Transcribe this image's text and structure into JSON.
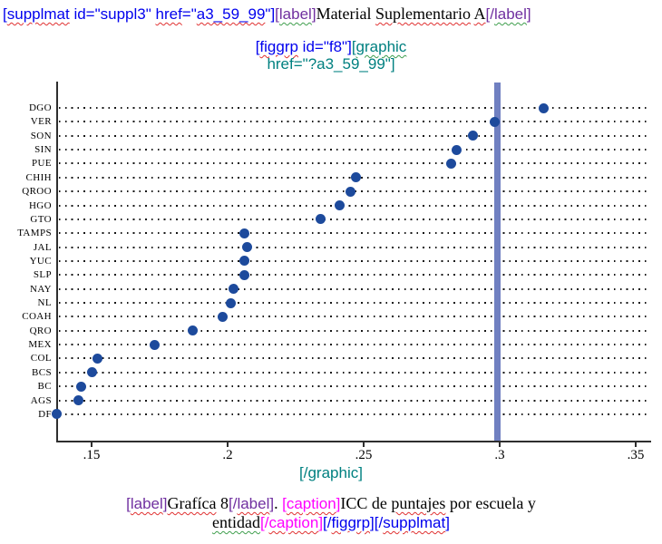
{
  "colors": {
    "blue": "#0000ee",
    "teal": "#008080",
    "purple": "#7030a0",
    "magenta": "#ff00ff",
    "black": "#000000",
    "squiggle_red": "#e03131",
    "squiggle_green": "#3f9e4d",
    "dot_navy": "#1d4a9c",
    "ref_line_blue": "#7080c1",
    "axis_gray": "#2e2e2e"
  },
  "header": {
    "segments": [
      {
        "t": "[",
        "c": "blue"
      },
      {
        "t": "supplmat",
        "c": "blue",
        "u": "red"
      },
      {
        "t": " id=\"suppl3\" ",
        "c": "blue"
      },
      {
        "t": "href",
        "c": "blue",
        "u": "red"
      },
      {
        "t": "=\"",
        "c": "blue"
      },
      {
        "t": "a3_59_99",
        "c": "blue",
        "u": "red"
      },
      {
        "t": "\"]",
        "c": "blue"
      },
      {
        "t": "[",
        "c": "purple"
      },
      {
        "t": "label",
        "c": "purple",
        "u": "green"
      },
      {
        "t": "]",
        "c": "purple"
      },
      {
        "t": "Material ",
        "c": "black",
        "k": "text"
      },
      {
        "t": "Suplementario",
        "c": "black",
        "k": "text",
        "u": "red"
      },
      {
        "t": " ",
        "c": "black",
        "k": "text"
      },
      {
        "t": "A",
        "c": "black",
        "k": "text",
        "u": "red"
      },
      {
        "t": "[/",
        "c": "purple"
      },
      {
        "t": "label",
        "c": "purple",
        "u": "green"
      },
      {
        "t": "]",
        "c": "purple"
      }
    ]
  },
  "figgrp": {
    "line1": [
      {
        "t": "[",
        "c": "blue"
      },
      {
        "t": "figgrp",
        "c": "blue",
        "u": "red"
      },
      {
        "t": " id=\"f8\"]",
        "c": "blue"
      },
      {
        "t": "[",
        "c": "teal"
      },
      {
        "t": "graphic",
        "c": "teal",
        "u": "green"
      }
    ],
    "line2": [
      {
        "t": "href=\"?a3_59_99\"]",
        "c": "teal"
      }
    ]
  },
  "graphic_close": {
    "segments": [
      {
        "t": "[/graphic]",
        "c": "teal"
      }
    ]
  },
  "caption": {
    "line1": [
      {
        "t": "[",
        "c": "purple"
      },
      {
        "t": "label",
        "c": "purple",
        "u": "red"
      },
      {
        "t": "]",
        "c": "purple"
      },
      {
        "t": "Grafíca",
        "c": "black",
        "k": "text",
        "u": "red"
      },
      {
        "t": " 8",
        "c": "black",
        "k": "text"
      },
      {
        "t": "[/",
        "c": "purple"
      },
      {
        "t": "label",
        "c": "purple",
        "u": "red"
      },
      {
        "t": "]",
        "c": "purple"
      },
      {
        "t": ". ",
        "c": "black",
        "k": "text"
      },
      {
        "t": "[",
        "c": "magenta"
      },
      {
        "t": "caption",
        "c": "magenta",
        "u": "red"
      },
      {
        "t": "]",
        "c": "magenta"
      },
      {
        "t": "ICC de ",
        "c": "black",
        "k": "text"
      },
      {
        "t": "puntajes",
        "c": "black",
        "k": "text",
        "u": "red"
      },
      {
        "t": " por escuela y",
        "c": "black",
        "k": "text"
      }
    ],
    "line2": [
      {
        "t": "entidad",
        "c": "black",
        "k": "text",
        "u": "green"
      },
      {
        "t": "[/",
        "c": "magenta"
      },
      {
        "t": "caption",
        "c": "magenta",
        "u": "red"
      },
      {
        "t": "]",
        "c": "magenta"
      },
      {
        "t": "[/",
        "c": "blue"
      },
      {
        "t": "figgrp",
        "c": "blue",
        "u": "red"
      },
      {
        "t": "]",
        "c": "blue"
      },
      {
        "t": "[/",
        "c": "blue"
      },
      {
        "t": "supplmat",
        "c": "blue",
        "u": "red"
      },
      {
        "t": "]",
        "c": "blue"
      }
    ]
  },
  "chart_data": {
    "type": "scatter",
    "variant": "horizontal-dot-plot",
    "title": "",
    "xlabel": "",
    "ylabel": "",
    "categories": [
      "DGO",
      "VER",
      "SON",
      "SIN",
      "PUE",
      "CHIH",
      "QROO",
      "HGO",
      "GTO",
      "TAMPS",
      "JAL",
      "YUC",
      "SLP",
      "NAY",
      "NL",
      "COAH",
      "QRO",
      "MEX",
      "COL",
      "BCS",
      "BC",
      "AGS",
      "DF"
    ],
    "values": [
      0.316,
      0.298,
      0.29,
      0.284,
      0.282,
      0.247,
      0.245,
      0.241,
      0.234,
      0.206,
      0.207,
      0.206,
      0.206,
      0.202,
      0.201,
      0.198,
      0.187,
      0.173,
      0.152,
      0.15,
      0.146,
      0.145,
      0.137
    ],
    "xticks": [
      ".15",
      ".2",
      ".25",
      ".3",
      ".35"
    ],
    "xtick_values": [
      0.15,
      0.2,
      0.25,
      0.3,
      0.35
    ],
    "xlim": [
      0.137,
      0.355
    ],
    "ref_line_x": 0.299,
    "grid": "dotted-row-leaders",
    "legend": "none"
  }
}
